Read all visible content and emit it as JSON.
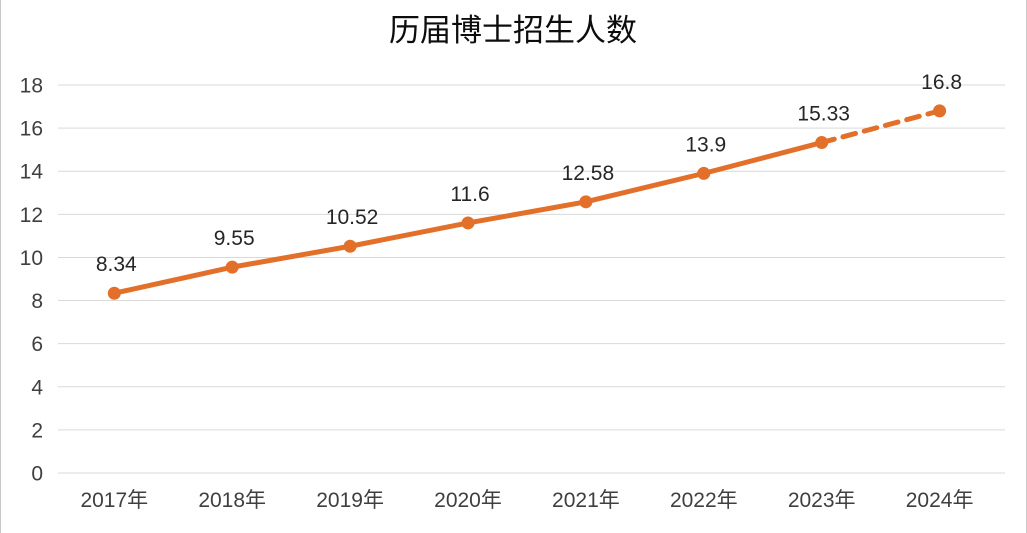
{
  "figure": {
    "background": "#ffffff",
    "frame_border_color": "#c9c9c9"
  },
  "chart_data": {
    "type": "line",
    "title": "历届博士招生人数",
    "categories": [
      "2017年",
      "2018年",
      "2019年",
      "2020年",
      "2021年",
      "2022年",
      "2023年",
      "2024年"
    ],
    "series": [
      {
        "values": [
          8.34,
          9.55,
          10.52,
          11.6,
          12.58,
          13.9,
          15.33,
          16.8
        ],
        "data_labels": [
          "8.34",
          "9.55",
          "10.52",
          "11.6",
          "12.58",
          "13.9",
          "15.33",
          "16.8"
        ],
        "color": "#e2702a",
        "marker": "circle",
        "dashed_from_index": 6
      }
    ],
    "xlabel": "",
    "ylabel": "",
    "ylim": [
      0,
      18
    ],
    "yticks": [
      0,
      2,
      4,
      6,
      8,
      10,
      12,
      14,
      16,
      18
    ],
    "grid": "horizontal",
    "legend": "none",
    "colors": {
      "line": "#e2702a",
      "gridline": "#d9d9d9",
      "tick_label": "#3f3f3f",
      "data_label": "#262626",
      "title": "#0d0d0d"
    }
  }
}
